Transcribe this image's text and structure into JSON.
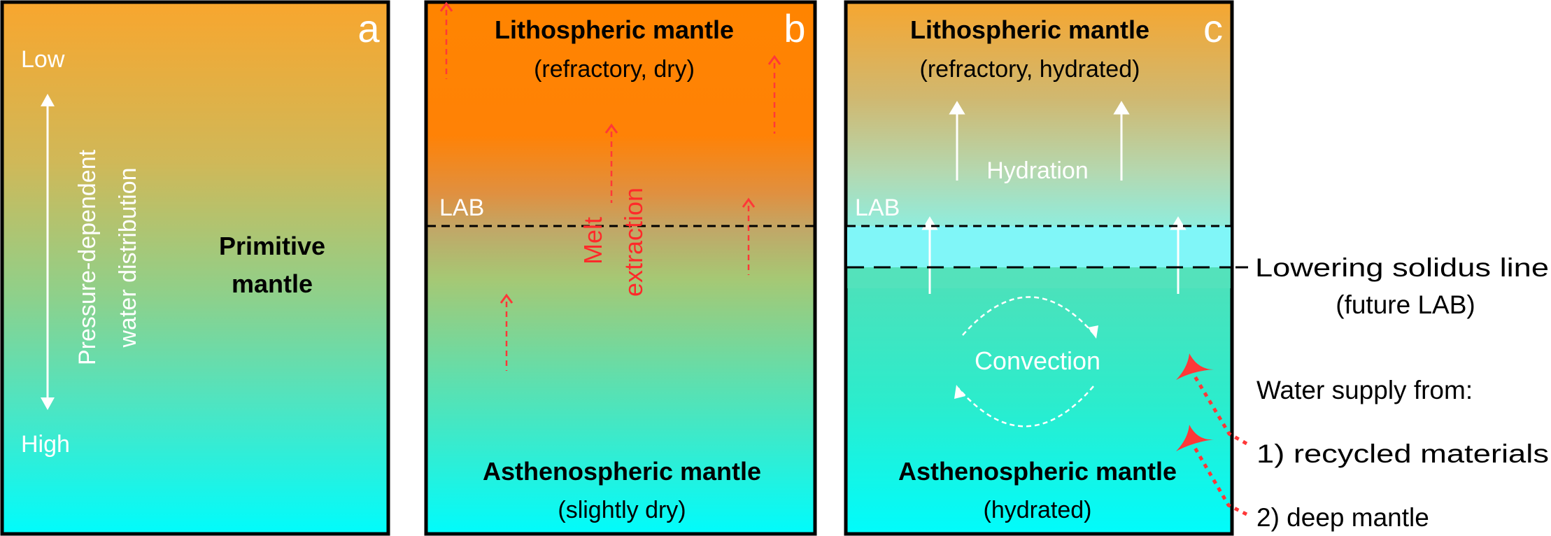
{
  "panels": {
    "a": {
      "letter": "a",
      "low": "Low",
      "high": "High",
      "axis_line1": "Pressure-dependent",
      "axis_line2": "water distribution",
      "title_line1": "Primitive",
      "title_line2": "mantle"
    },
    "b": {
      "letter": "b",
      "top_title": "Lithospheric mantle",
      "top_subtitle": "(refractory, dry)",
      "lab": "LAB",
      "process_line1": "Melt",
      "process_line2": "extraction",
      "bottom_title": "Asthenospheric mantle",
      "bottom_subtitle": "(slightly dry)"
    },
    "c": {
      "letter": "c",
      "top_title": "Lithospheric mantle",
      "top_subtitle": "(refractory, hydrated)",
      "hydration": "Hydration",
      "lab": "LAB",
      "convection": "Convection",
      "bottom_title": "Asthenospheric mantle",
      "bottom_subtitle": "(hydrated)"
    }
  },
  "annotations": {
    "solidus_line1": "Lowering solidus line",
    "solidus_line2": "(future LAB)",
    "water_supply": "Water supply from:",
    "source1": "1) recycled materials",
    "source2": "2) deep mantle"
  },
  "colors": {
    "lithosphere_orange": "#ff8000",
    "asthenosphere_cyan": "#00fafa",
    "melt_arrow_red": "#ff3030",
    "hydrated_band": "#80f6f8"
  }
}
